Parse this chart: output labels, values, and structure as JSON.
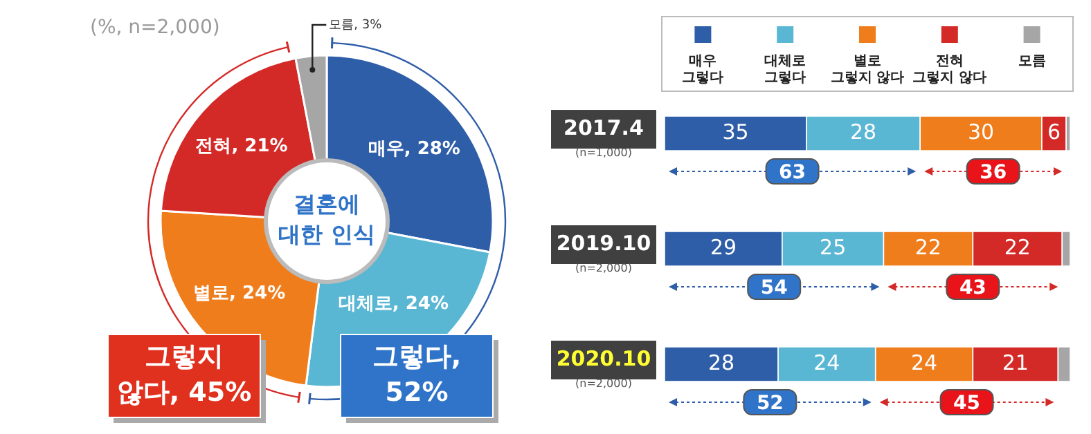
{
  "chart_data": [
    {
      "type": "donut",
      "title": "결혼에 대한 인식",
      "categories": [
        "매우",
        "대체로",
        "별로",
        "전혀",
        "모름"
      ],
      "values": [
        28,
        24,
        24,
        21,
        3
      ],
      "value_labels": [
        "28%",
        "24%",
        "24%",
        "21%",
        "3%"
      ],
      "colors": [
        "#2f5ea8",
        "#5ab7d4",
        "#f07d1c",
        "#d42a27",
        "#a6a6a6"
      ],
      "annotations": [
        "(%, n=2,000)",
        "그렇지 않다, 45%",
        "그렇다, 52%"
      ]
    },
    {
      "type": "bar",
      "orientation": "horizontal",
      "stacked": true,
      "categories": [
        "2017.4",
        "2019.10",
        "2020.10"
      ],
      "xlim": [
        0,
        100
      ],
      "tick_labels": "y",
      "legend": "top",
      "series": [
        {
          "name": "매우 그렇다",
          "color": "#2f5ea8",
          "values": [
            35,
            29,
            28
          ],
          "value_labels": [
            "35",
            "29",
            "28"
          ]
        },
        {
          "name": "대체로 그렇다",
          "color": "#5ab7d4",
          "values": [
            28,
            25,
            24
          ],
          "value_labels": [
            "28",
            "25",
            "24"
          ]
        },
        {
          "name": "별로 그렇지 않다",
          "color": "#f07d1c",
          "values": [
            30,
            22,
            24
          ],
          "value_labels": [
            "30",
            "22",
            "24"
          ]
        },
        {
          "name": "전혀 그렇지 않다",
          "color": "#d42a27",
          "values": [
            6,
            22,
            21
          ],
          "value_labels": [
            "6",
            "22",
            "21"
          ]
        },
        {
          "name": "모름",
          "color": "#a6a6a6",
          "values": [
            1,
            2,
            3
          ],
          "value_labels": [
            null,
            null,
            null
          ]
        }
      ],
      "annotations": [
        "(n=1,000)",
        "(n=2,000)",
        "(n=2,000)",
        "63",
        "36",
        "54",
        "43",
        "52",
        "45"
      ]
    }
  ]
}
